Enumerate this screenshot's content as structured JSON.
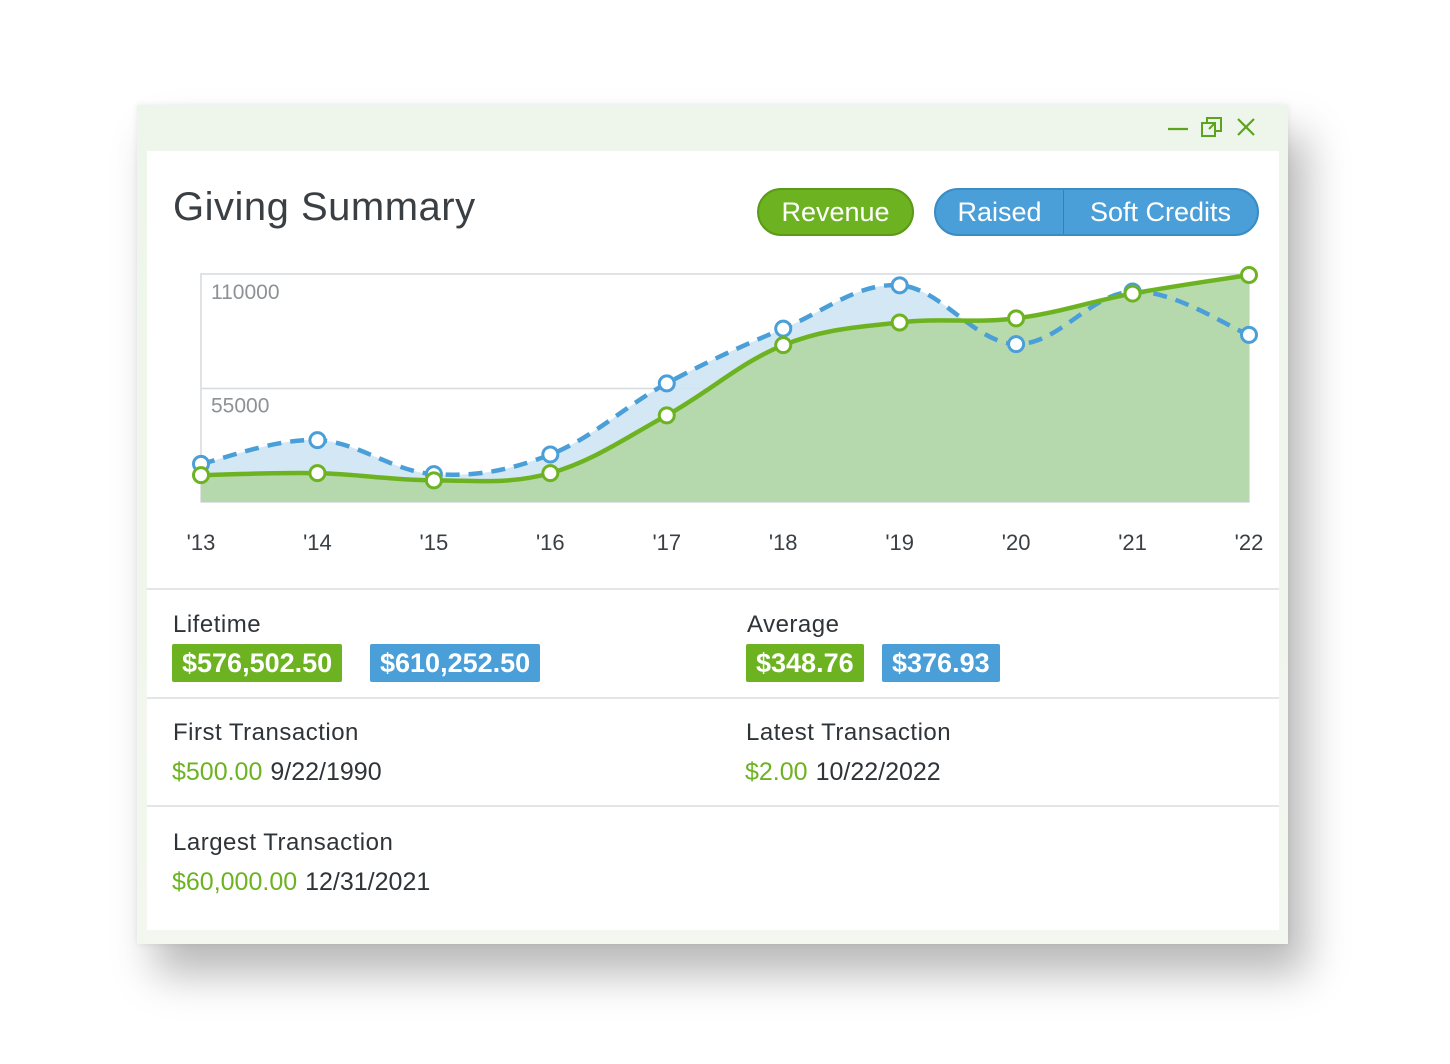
{
  "window": {
    "controls": [
      {
        "name": "minimize-icon"
      },
      {
        "name": "restore-icon"
      },
      {
        "name": "close-icon"
      }
    ]
  },
  "header": {
    "title": "Giving Summary",
    "toggle_revenue": "Revenue",
    "toggle_raised": "Raised",
    "toggle_soft_credits": "Soft Credits"
  },
  "colors": {
    "green": "#6db321",
    "blue": "#4a9fd8",
    "green_fill": "#b2d8a6",
    "blue_fill": "#cfe4f3"
  },
  "chart_data": {
    "type": "area",
    "categories": [
      "'13",
      "'14",
      "'15",
      "'16",
      "'17",
      "'18",
      "'19",
      "'20",
      "'21",
      "'22"
    ],
    "y_tick_labels": [
      "110000",
      "55000"
    ],
    "ylim": [
      0,
      110000
    ],
    "series": [
      {
        "name": "Revenue",
        "style": "solid",
        "values": [
          13000,
          14000,
          10500,
          14000,
          42000,
          76000,
          87000,
          89000,
          101000,
          110000
        ]
      },
      {
        "name": "Raised",
        "style": "dashed",
        "values": [
          18500,
          30000,
          13500,
          23000,
          57500,
          84000,
          105000,
          76500,
          102000,
          81000
        ]
      }
    ]
  },
  "stats": {
    "lifetime": {
      "label": "Lifetime",
      "revenue": "$576,502.50",
      "raised": "$610,252.50"
    },
    "average": {
      "label": "Average",
      "revenue": "$348.76",
      "raised": "$376.93"
    },
    "first": {
      "label": "First Transaction",
      "amount": "$500.00",
      "date": "9/22/1990"
    },
    "latest": {
      "label": "Latest Transaction",
      "amount": "$2.00",
      "date": "10/22/2022"
    },
    "largest": {
      "label": "Largest Transaction",
      "amount": "$60,000.00",
      "date": "12/31/2021"
    }
  }
}
